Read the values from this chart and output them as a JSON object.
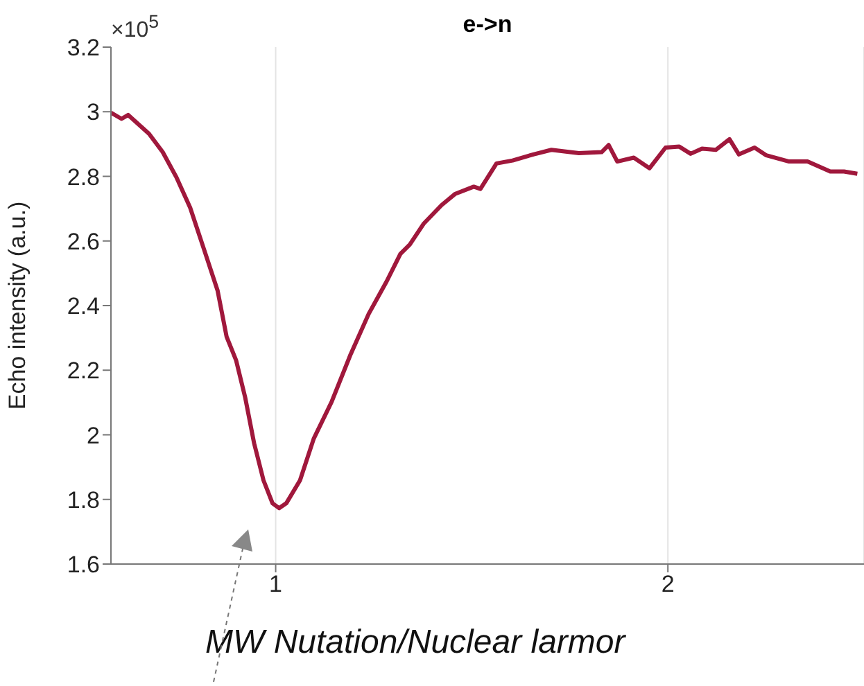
{
  "chart_data": {
    "type": "line",
    "title": "e->n",
    "ylabel": "Echo intensity (a.u.)",
    "annotations": [
      "×10$^{5}$",
      "MW Nutation/Nuclear larmor"
    ],
    "x": [
      0.58,
      0.607,
      0.624,
      0.677,
      0.712,
      0.747,
      0.782,
      0.817,
      0.852,
      0.875,
      0.899,
      0.922,
      0.945,
      0.969,
      0.992,
      1.009,
      1.027,
      1.062,
      1.097,
      1.143,
      1.19,
      1.237,
      1.283,
      1.318,
      1.342,
      1.377,
      1.4,
      1.423,
      1.458,
      1.505,
      1.522,
      1.563,
      1.604,
      1.657,
      1.703,
      1.773,
      1.831,
      1.849,
      1.871,
      1.913,
      1.953,
      1.994,
      2.029,
      2.058,
      2.087,
      2.122,
      2.157,
      2.181,
      2.221,
      2.251,
      2.309,
      2.356,
      2.414,
      2.449,
      2.483
    ],
    "series": [
      {
        "color": "#a0183c",
        "values": [
          2.997,
          2.978,
          2.99,
          2.932,
          2.875,
          2.797,
          2.703,
          2.575,
          2.446,
          2.303,
          2.231,
          2.117,
          1.974,
          1.859,
          1.788,
          1.773,
          1.788,
          1.859,
          1.988,
          2.103,
          2.246,
          2.374,
          2.475,
          2.56,
          2.589,
          2.653,
          2.682,
          2.711,
          2.746,
          2.768,
          2.761,
          2.84,
          2.849,
          2.868,
          2.882,
          2.872,
          2.875,
          2.897,
          2.846,
          2.858,
          2.825,
          2.889,
          2.892,
          2.87,
          2.886,
          2.882,
          2.915,
          2.868,
          2.889,
          2.865,
          2.846,
          2.846,
          2.815,
          2.815,
          2.808
        ]
      }
    ],
    "xlim": [
      0.58,
      2.5
    ],
    "xticks": [
      1,
      2
    ],
    "ylim": [
      1.6,
      3.2
    ],
    "yticks": [
      1.6,
      1.8,
      2,
      2.2,
      2.4,
      2.6,
      2.8,
      3,
      3.2
    ],
    "grid": "x",
    "marker": "none",
    "line_style": "solid",
    "legend": false
  }
}
